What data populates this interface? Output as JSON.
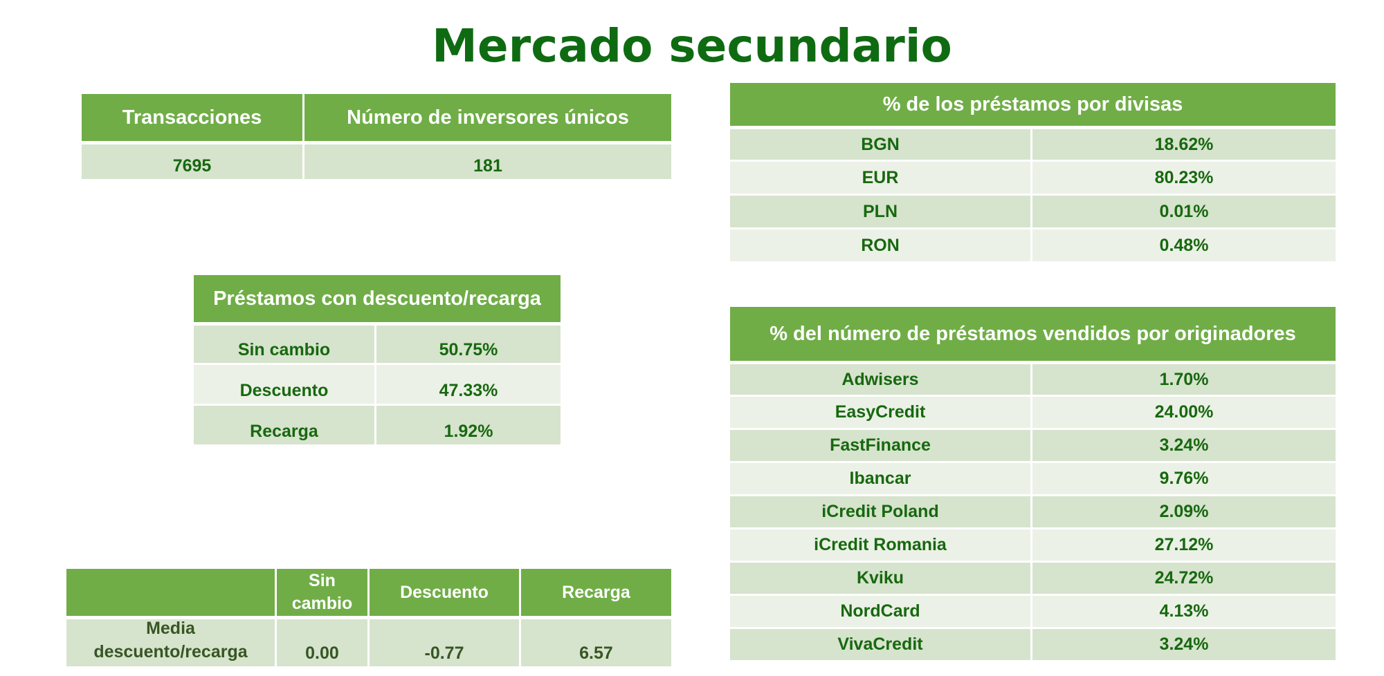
{
  "title": "Mercado secundario",
  "transactions_table": {
    "headers": [
      "Transacciones",
      "Número de inversores únicos"
    ],
    "values": [
      "7695",
      "181"
    ]
  },
  "discount_table": {
    "header": "Préstamos con descuento/recarga",
    "rows": [
      {
        "label": "Sin cambio",
        "value": "50.75%"
      },
      {
        "label": "Descuento",
        "value": "47.33%"
      },
      {
        "label": "Recarga",
        "value": "1.92%"
      }
    ]
  },
  "average_table": {
    "headers": [
      "",
      "Sin cambio",
      "Descuento",
      "Recarga"
    ],
    "row": {
      "label": "Media descuento/recarga",
      "values": [
        "0.00",
        "-0.77",
        "6.57"
      ]
    }
  },
  "currency_table": {
    "header": "% de los préstamos por divisas",
    "rows": [
      {
        "label": "BGN",
        "value": "18.62%"
      },
      {
        "label": "EUR",
        "value": "80.23%"
      },
      {
        "label": "PLN",
        "value": "0.01%"
      },
      {
        "label": "RON",
        "value": "0.48%"
      }
    ]
  },
  "originators_table": {
    "header": "% del número de préstamos vendidos por originadores",
    "rows": [
      {
        "label": "Adwisers",
        "value": "1.70%"
      },
      {
        "label": "EasyCredit",
        "value": "24.00%"
      },
      {
        "label": "FastFinance",
        "value": "3.24%"
      },
      {
        "label": "Ibancar",
        "value": "9.76%"
      },
      {
        "label": "iCredit Poland",
        "value": "2.09%"
      },
      {
        "label": "iCredit Romania",
        "value": "27.12%"
      },
      {
        "label": "Kviku",
        "value": "24.72%"
      },
      {
        "label": "NordCard",
        "value": "4.13%"
      },
      {
        "label": "VivaCredit",
        "value": "3.24%"
      }
    ]
  }
}
